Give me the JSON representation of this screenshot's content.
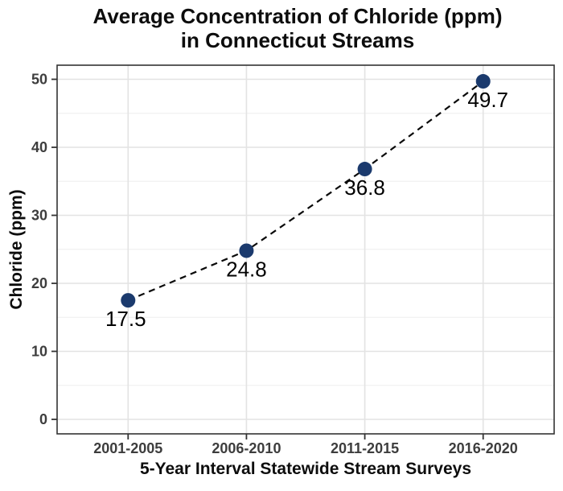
{
  "title": {
    "line1": "Average Concentration of Chloride (ppm)",
    "line2": "in Connecticut Streams"
  },
  "chart_data": {
    "type": "line",
    "style": "dashed-line-with-points",
    "title": "Average Concentration of Chloride (ppm) in Connecticut Streams",
    "xlabel": "5-Year Interval Statewide Stream Surveys",
    "ylabel": "Chloride (ppm)",
    "categories": [
      "2001-2005",
      "2006-2010",
      "2011-2015",
      "2016-2020"
    ],
    "values": [
      17.5,
      24.8,
      36.8,
      49.7
    ],
    "point_labels": [
      "17.5",
      "24.8",
      "36.8",
      "49.7"
    ],
    "ylim": [
      0,
      50
    ],
    "yticks": [
      0,
      10,
      20,
      30,
      40,
      50
    ],
    "yminor_step": 5,
    "grid": true,
    "legend": "none",
    "colors": {
      "point": "#1b3a6d",
      "line": "#0a0a0a",
      "grid_major": "#e3e3e3",
      "grid_minor": "#f1f1f1",
      "panel_border": "#333333",
      "tick_label": "#3d3d3d",
      "text": "#0d0d0d"
    }
  }
}
